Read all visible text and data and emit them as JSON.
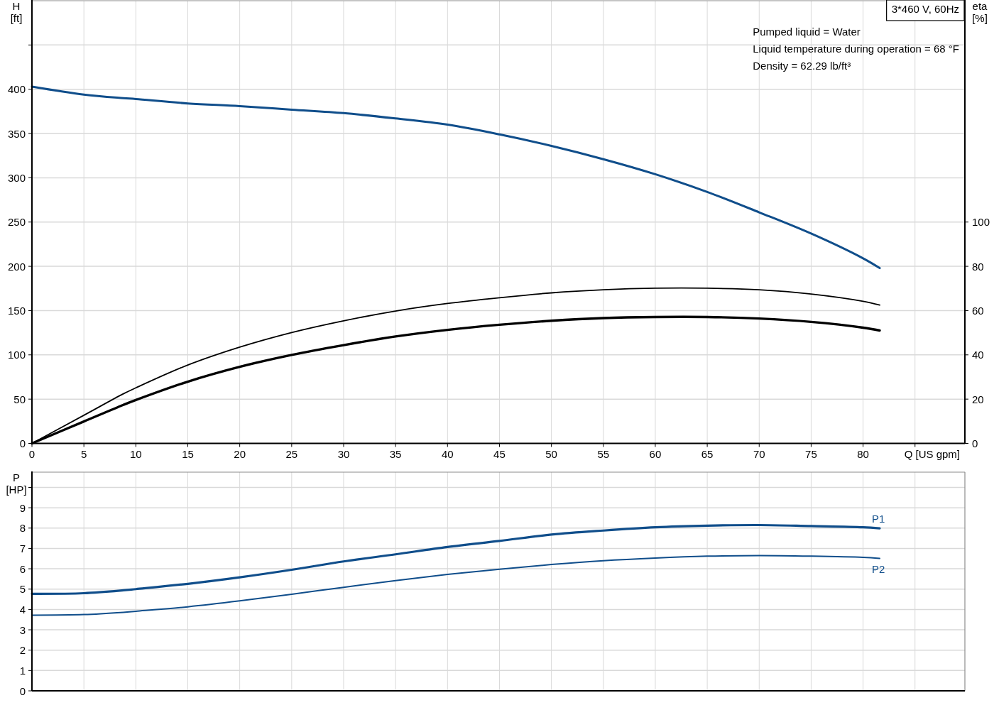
{
  "chart_data": [
    {
      "type": "line",
      "title": "3*460 V, 60Hz",
      "xlabel": "Q [US gpm]",
      "ylabel": "H\n[ft]",
      "y2label": "eta\n[%]",
      "annotations": [
        "Pumped liquid = Water",
        "Liquid temperature during operation = 68 °F",
        "Density = 62.29 lb/ft³"
      ],
      "x": [
        0,
        5,
        8.8,
        10,
        15,
        20,
        25,
        30,
        35,
        40,
        45,
        50,
        55,
        60,
        65,
        70,
        75,
        80,
        81.6
      ],
      "series": [
        {
          "color": "#104e8b",
          "values": [
            403,
            394,
            390,
            389,
            384,
            381,
            377,
            373,
            367,
            360,
            349,
            336,
            321,
            304,
            284,
            261,
            237,
            209,
            198
          ]
        },
        {
          "color": "#000000",
          "axis": "y2",
          "values": [
            0,
            12.7,
            22.4,
            25.1,
            35.4,
            43.5,
            50.1,
            55.4,
            59.8,
            63.2,
            65.8,
            68.0,
            69.4,
            70.1,
            70.1,
            69.4,
            67.5,
            64.2,
            62.5
          ]
        },
        {
          "color": "#000000",
          "axis": "y2",
          "values": [
            0,
            9.9,
            17.4,
            19.6,
            27.9,
            34.6,
            40.0,
            44.4,
            48.3,
            51.3,
            53.6,
            55.4,
            56.6,
            57.1,
            57.1,
            56.4,
            54.9,
            52.3,
            51.0
          ]
        }
      ],
      "xlim": [
        0,
        89.8
      ],
      "xticks": [
        0,
        5,
        10,
        15,
        20,
        25,
        30,
        35,
        40,
        45,
        50,
        55,
        60,
        65,
        70,
        75,
        80,
        {
          "value": 85,
          "label": null
        }
      ],
      "ylim": [
        0,
        500
      ],
      "yticks": [
        0,
        50,
        100,
        150,
        200,
        250,
        300,
        350,
        400,
        {
          "value": 450,
          "label": null
        }
      ],
      "y2lim": [
        0,
        200
      ],
      "y2ticks": [
        0,
        20,
        40,
        60,
        80,
        100
      ],
      "grid": true
    },
    {
      "type": "line",
      "ylabel": "P\n[HP]",
      "x": [
        0,
        5,
        8.8,
        10,
        15,
        20,
        25,
        30,
        35,
        40,
        45,
        50,
        55,
        60,
        65,
        70,
        75,
        80,
        81.6
      ],
      "series": [
        {
          "name": "P1",
          "color": "#104e8b",
          "values": [
            4.77,
            4.8,
            4.94,
            5.0,
            5.26,
            5.58,
            5.95,
            6.36,
            6.71,
            7.07,
            7.37,
            7.68,
            7.88,
            8.04,
            8.12,
            8.15,
            8.1,
            8.04,
            7.99
          ]
        },
        {
          "name": "P2",
          "color": "#104e8b",
          "values": [
            3.72,
            3.75,
            3.86,
            3.91,
            4.13,
            4.42,
            4.75,
            5.09,
            5.42,
            5.72,
            5.98,
            6.21,
            6.4,
            6.53,
            6.62,
            6.65,
            6.62,
            6.56,
            6.51
          ]
        }
      ],
      "xlim": [
        0,
        89.8
      ],
      "xticks": [
        0,
        5,
        10,
        15,
        20,
        25,
        30,
        35,
        40,
        45,
        50,
        55,
        60,
        65,
        70,
        75,
        80,
        85
      ],
      "ylim": [
        0,
        10.75
      ],
      "yticks": [
        0,
        1,
        2,
        3,
        4,
        5,
        6,
        7,
        8,
        9,
        {
          "value": 10,
          "label": null
        }
      ],
      "grid": true,
      "tick_labels": "y"
    }
  ]
}
